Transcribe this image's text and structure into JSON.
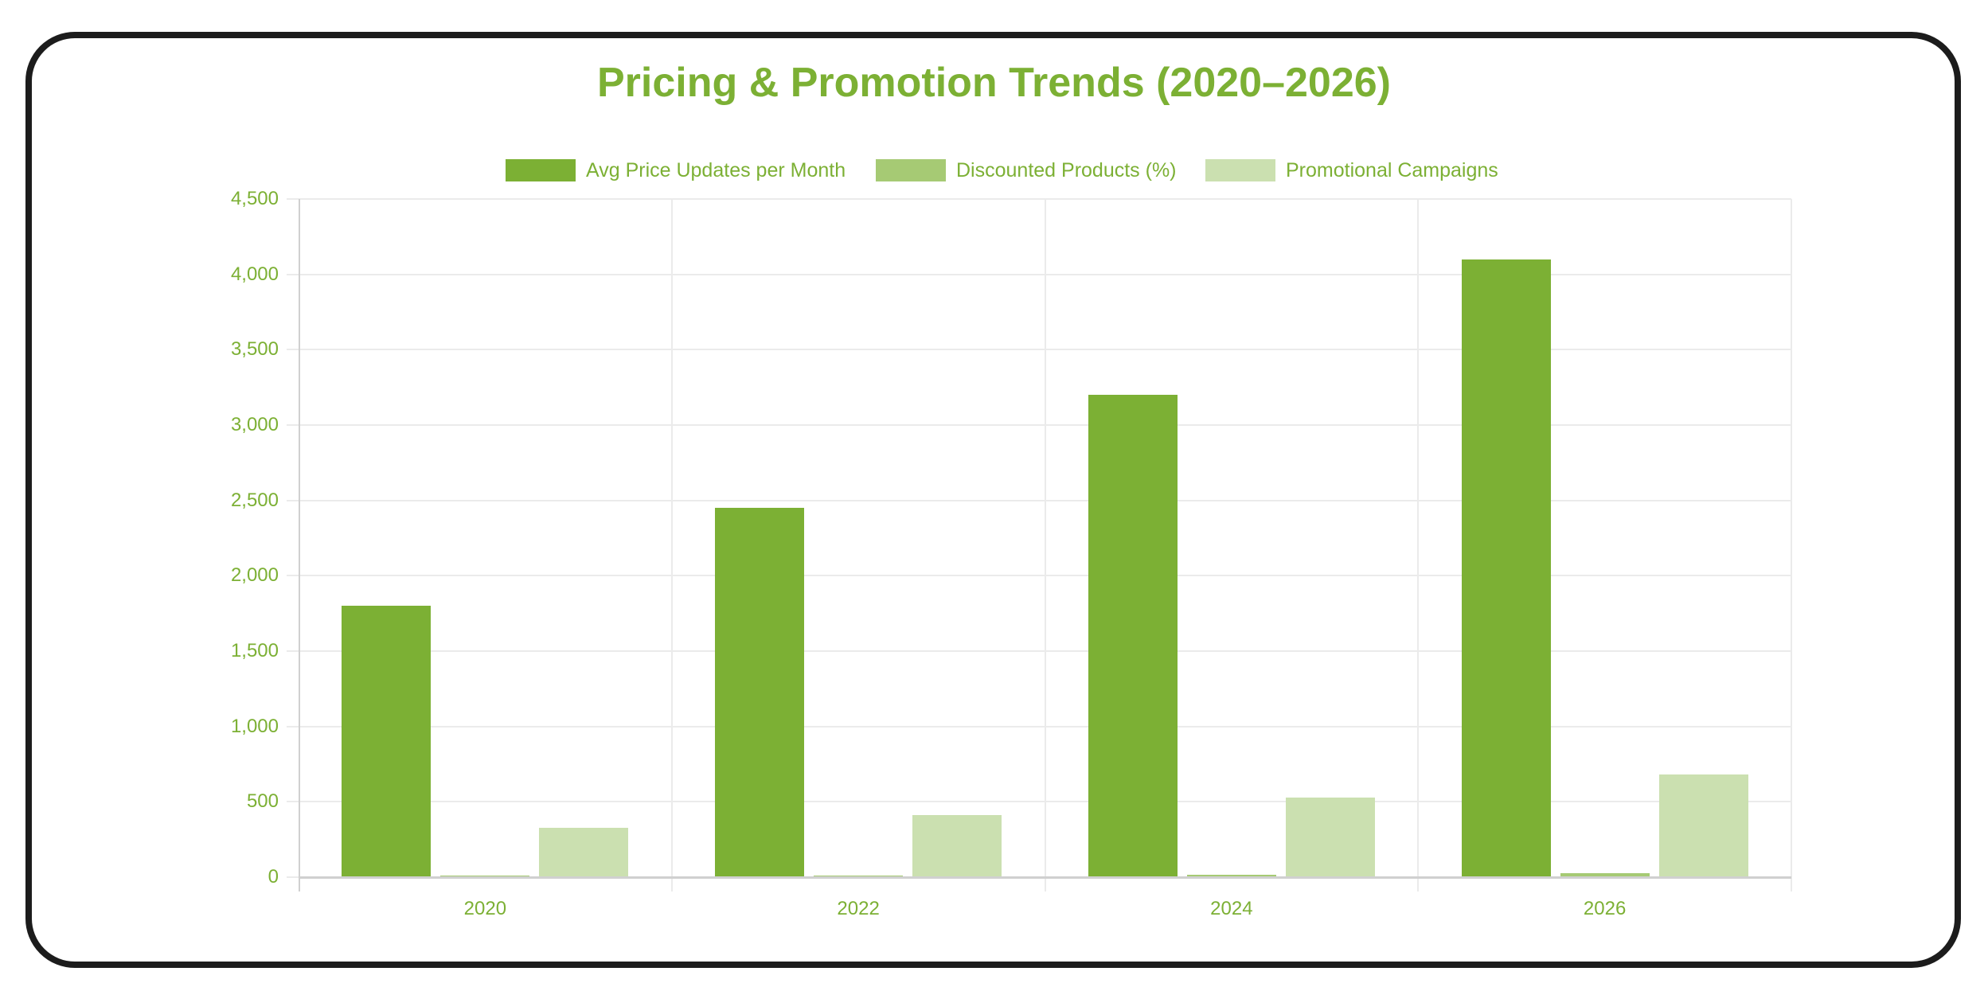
{
  "chart_data": {
    "type": "bar",
    "title": "Pricing & Promotion Trends (2020–2026)",
    "xlabel": "",
    "ylabel": "",
    "categories": [
      "2020",
      "2022",
      "2024",
      "2026"
    ],
    "series": [
      {
        "name": "Avg Price Updates per Month",
        "color": "#7cb034",
        "values": [
          1800,
          2450,
          3200,
          4100
        ]
      },
      {
        "name": "Discounted Products (%)",
        "color": "#a6ca74",
        "values": [
          10,
          12,
          18,
          25
        ]
      },
      {
        "name": "Promotional Campaigns",
        "color": "#cbe0b0",
        "values": [
          330,
          410,
          530,
          680
        ]
      }
    ],
    "ylim": [
      0,
      4500
    ],
    "yticks": [
      0,
      500,
      1000,
      1500,
      2000,
      2500,
      3000,
      3500,
      4000,
      4500
    ],
    "ytick_labels": [
      "0",
      "500",
      "1,000",
      "1,500",
      "2,000",
      "2,500",
      "3,000",
      "3,500",
      "4,000",
      "4,500"
    ],
    "grid": true,
    "legend_position": "top"
  },
  "colors": {
    "text": "#7cb034",
    "frame": "#1c1c1c",
    "grid": "#ebebeb",
    "axis": "#d0d0d0"
  }
}
